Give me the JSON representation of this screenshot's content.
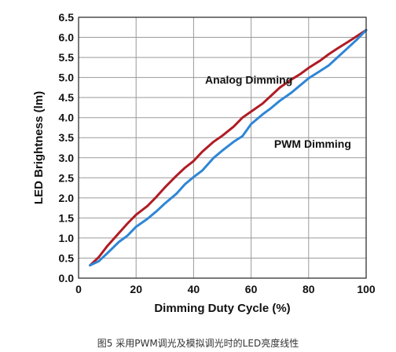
{
  "chart_data": {
    "type": "line",
    "xlabel": "Dimming Duty Cycle (%)",
    "ylabel": "LED Brightness (lm)",
    "xlim": [
      0,
      100
    ],
    "ylim": [
      0,
      6.5
    ],
    "x_ticks": [
      "0",
      "20",
      "40",
      "60",
      "80",
      "100"
    ],
    "y_ticks": [
      "0.0",
      "0.5",
      "1.0",
      "1.5",
      "2.0",
      "2.5",
      "3.0",
      "3.5",
      "4.0",
      "4.5",
      "5.0",
      "5.5",
      "6.0",
      "6.5"
    ],
    "x_tick_values": [
      0,
      20,
      40,
      60,
      80,
      100
    ],
    "y_tick_values": [
      0,
      0.5,
      1.0,
      1.5,
      2.0,
      2.5,
      3.0,
      3.5,
      4.0,
      4.5,
      5.0,
      5.5,
      6.0,
      6.5
    ],
    "grid": true,
    "series": [
      {
        "name": "Analog Dimming",
        "color": "#b01c24",
        "x": [
          4,
          7,
          10,
          14,
          17,
          20,
          24,
          27,
          30,
          34,
          37,
          40,
          43,
          47,
          50,
          54,
          57,
          60,
          64,
          67,
          70,
          74,
          77,
          80,
          84,
          87,
          90,
          94,
          97,
          100
        ],
        "y": [
          0.32,
          0.52,
          0.8,
          1.12,
          1.36,
          1.58,
          1.8,
          2.02,
          2.26,
          2.55,
          2.75,
          2.92,
          3.15,
          3.4,
          3.55,
          3.78,
          4.0,
          4.15,
          4.35,
          4.55,
          4.75,
          4.95,
          5.08,
          5.24,
          5.42,
          5.58,
          5.72,
          5.9,
          6.04,
          6.18
        ]
      },
      {
        "name": "PWM Dimming",
        "color": "#2e86d6",
        "x": [
          4,
          7,
          10,
          14,
          17,
          20,
          24,
          27,
          30,
          34,
          37,
          40,
          43,
          47,
          50,
          54,
          57,
          60,
          64,
          67,
          70,
          74,
          77,
          80,
          84,
          87,
          90,
          94,
          97,
          100
        ],
        "y": [
          0.32,
          0.42,
          0.62,
          0.9,
          1.06,
          1.28,
          1.48,
          1.66,
          1.86,
          2.1,
          2.34,
          2.52,
          2.68,
          3.0,
          3.18,
          3.4,
          3.54,
          3.84,
          4.08,
          4.24,
          4.42,
          4.62,
          4.8,
          4.98,
          5.16,
          5.3,
          5.5,
          5.76,
          5.96,
          6.18
        ]
      }
    ],
    "annotations": [
      {
        "text": "Analog Dimming",
        "x": 44,
        "y": 4.85
      },
      {
        "text": "PWM Dimming",
        "x": 68,
        "y": 3.25
      }
    ]
  },
  "caption": "图5 采用PWM调光及模拟调光时的LED亮度线性"
}
